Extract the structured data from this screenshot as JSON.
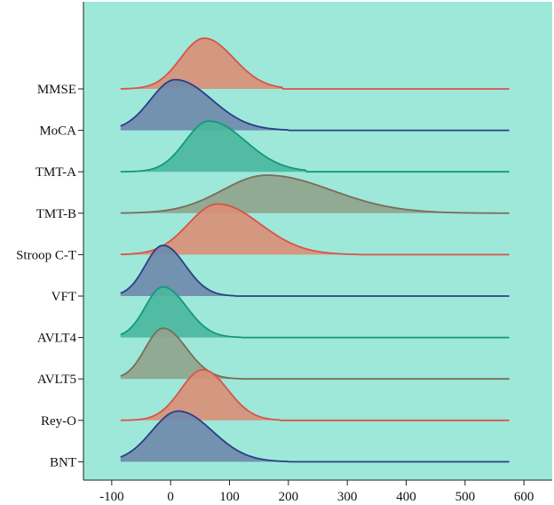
{
  "chart_data": {
    "type": "area",
    "style": "ridgeline",
    "title": "",
    "xlabel": "",
    "ylabel": "",
    "xlim": [
      -148,
      648
    ],
    "x_ticks": [
      -100,
      0,
      100,
      200,
      300,
      400,
      500,
      600
    ],
    "x_tick_labels": [
      "-100",
      "0",
      "100",
      "200",
      "300",
      "400",
      "500",
      "600"
    ],
    "x_range": [
      -85,
      575
    ],
    "grid": false,
    "legend": "none",
    "background_color": "#9ee8da",
    "series": [
      {
        "name": "MMSE",
        "color": "#d9534a",
        "fill": "#d98f78",
        "peak_x": 57,
        "sd_left": 40,
        "sd_right": 50,
        "extent": [
          -85,
          190
        ],
        "height": 1.0
      },
      {
        "name": "MoCA",
        "color": "#2b3f86",
        "fill": "#6f8aab",
        "peak_x": 8,
        "sd_left": 42,
        "sd_right": 62,
        "extent": [
          -85,
          200
        ],
        "height": 1.0
      },
      {
        "name": "TMT-A",
        "color": "#12997b",
        "fill": "#4bb79e",
        "peak_x": 65,
        "sd_left": 40,
        "sd_right": 62,
        "extent": [
          -85,
          230
        ],
        "height": 1.0
      },
      {
        "name": "TMT-B",
        "color": "#7d6b58",
        "fill": "#8fa48e",
        "peak_x": 163,
        "sd_left": 75,
        "sd_right": 110,
        "extent": [
          -85,
          575
        ],
        "height": 0.75
      },
      {
        "name": "Stroop C-T",
        "color": "#d9534a",
        "fill": "#d98f78",
        "peak_x": 80,
        "sd_left": 50,
        "sd_right": 72,
        "extent": [
          -85,
          320
        ],
        "height": 1.0
      },
      {
        "name": "VFT",
        "color": "#2b3f86",
        "fill": "#6f8aab",
        "peak_x": -13,
        "sd_left": 30,
        "sd_right": 38,
        "extent": [
          -85,
          110
        ],
        "height": 1.0
      },
      {
        "name": "AVLT4",
        "color": "#12997b",
        "fill": "#4bb79e",
        "peak_x": -13,
        "sd_left": 30,
        "sd_right": 40,
        "extent": [
          -85,
          120
        ],
        "height": 1.0
      },
      {
        "name": "AVLT5",
        "color": "#7d6b58",
        "fill": "#8fa48e",
        "peak_x": -13,
        "sd_left": 30,
        "sd_right": 40,
        "extent": [
          -85,
          120
        ],
        "height": 1.0
      },
      {
        "name": "Rey-O",
        "color": "#d9534a",
        "fill": "#d98f78",
        "peak_x": 55,
        "sd_left": 38,
        "sd_right": 42,
        "extent": [
          -85,
          185
        ],
        "height": 1.0
      },
      {
        "name": "BNT",
        "color": "#2b3f86",
        "fill": "#6f8aab",
        "peak_x": 13,
        "sd_left": 45,
        "sd_right": 58,
        "extent": [
          -85,
          200
        ],
        "height": 1.0
      }
    ]
  }
}
